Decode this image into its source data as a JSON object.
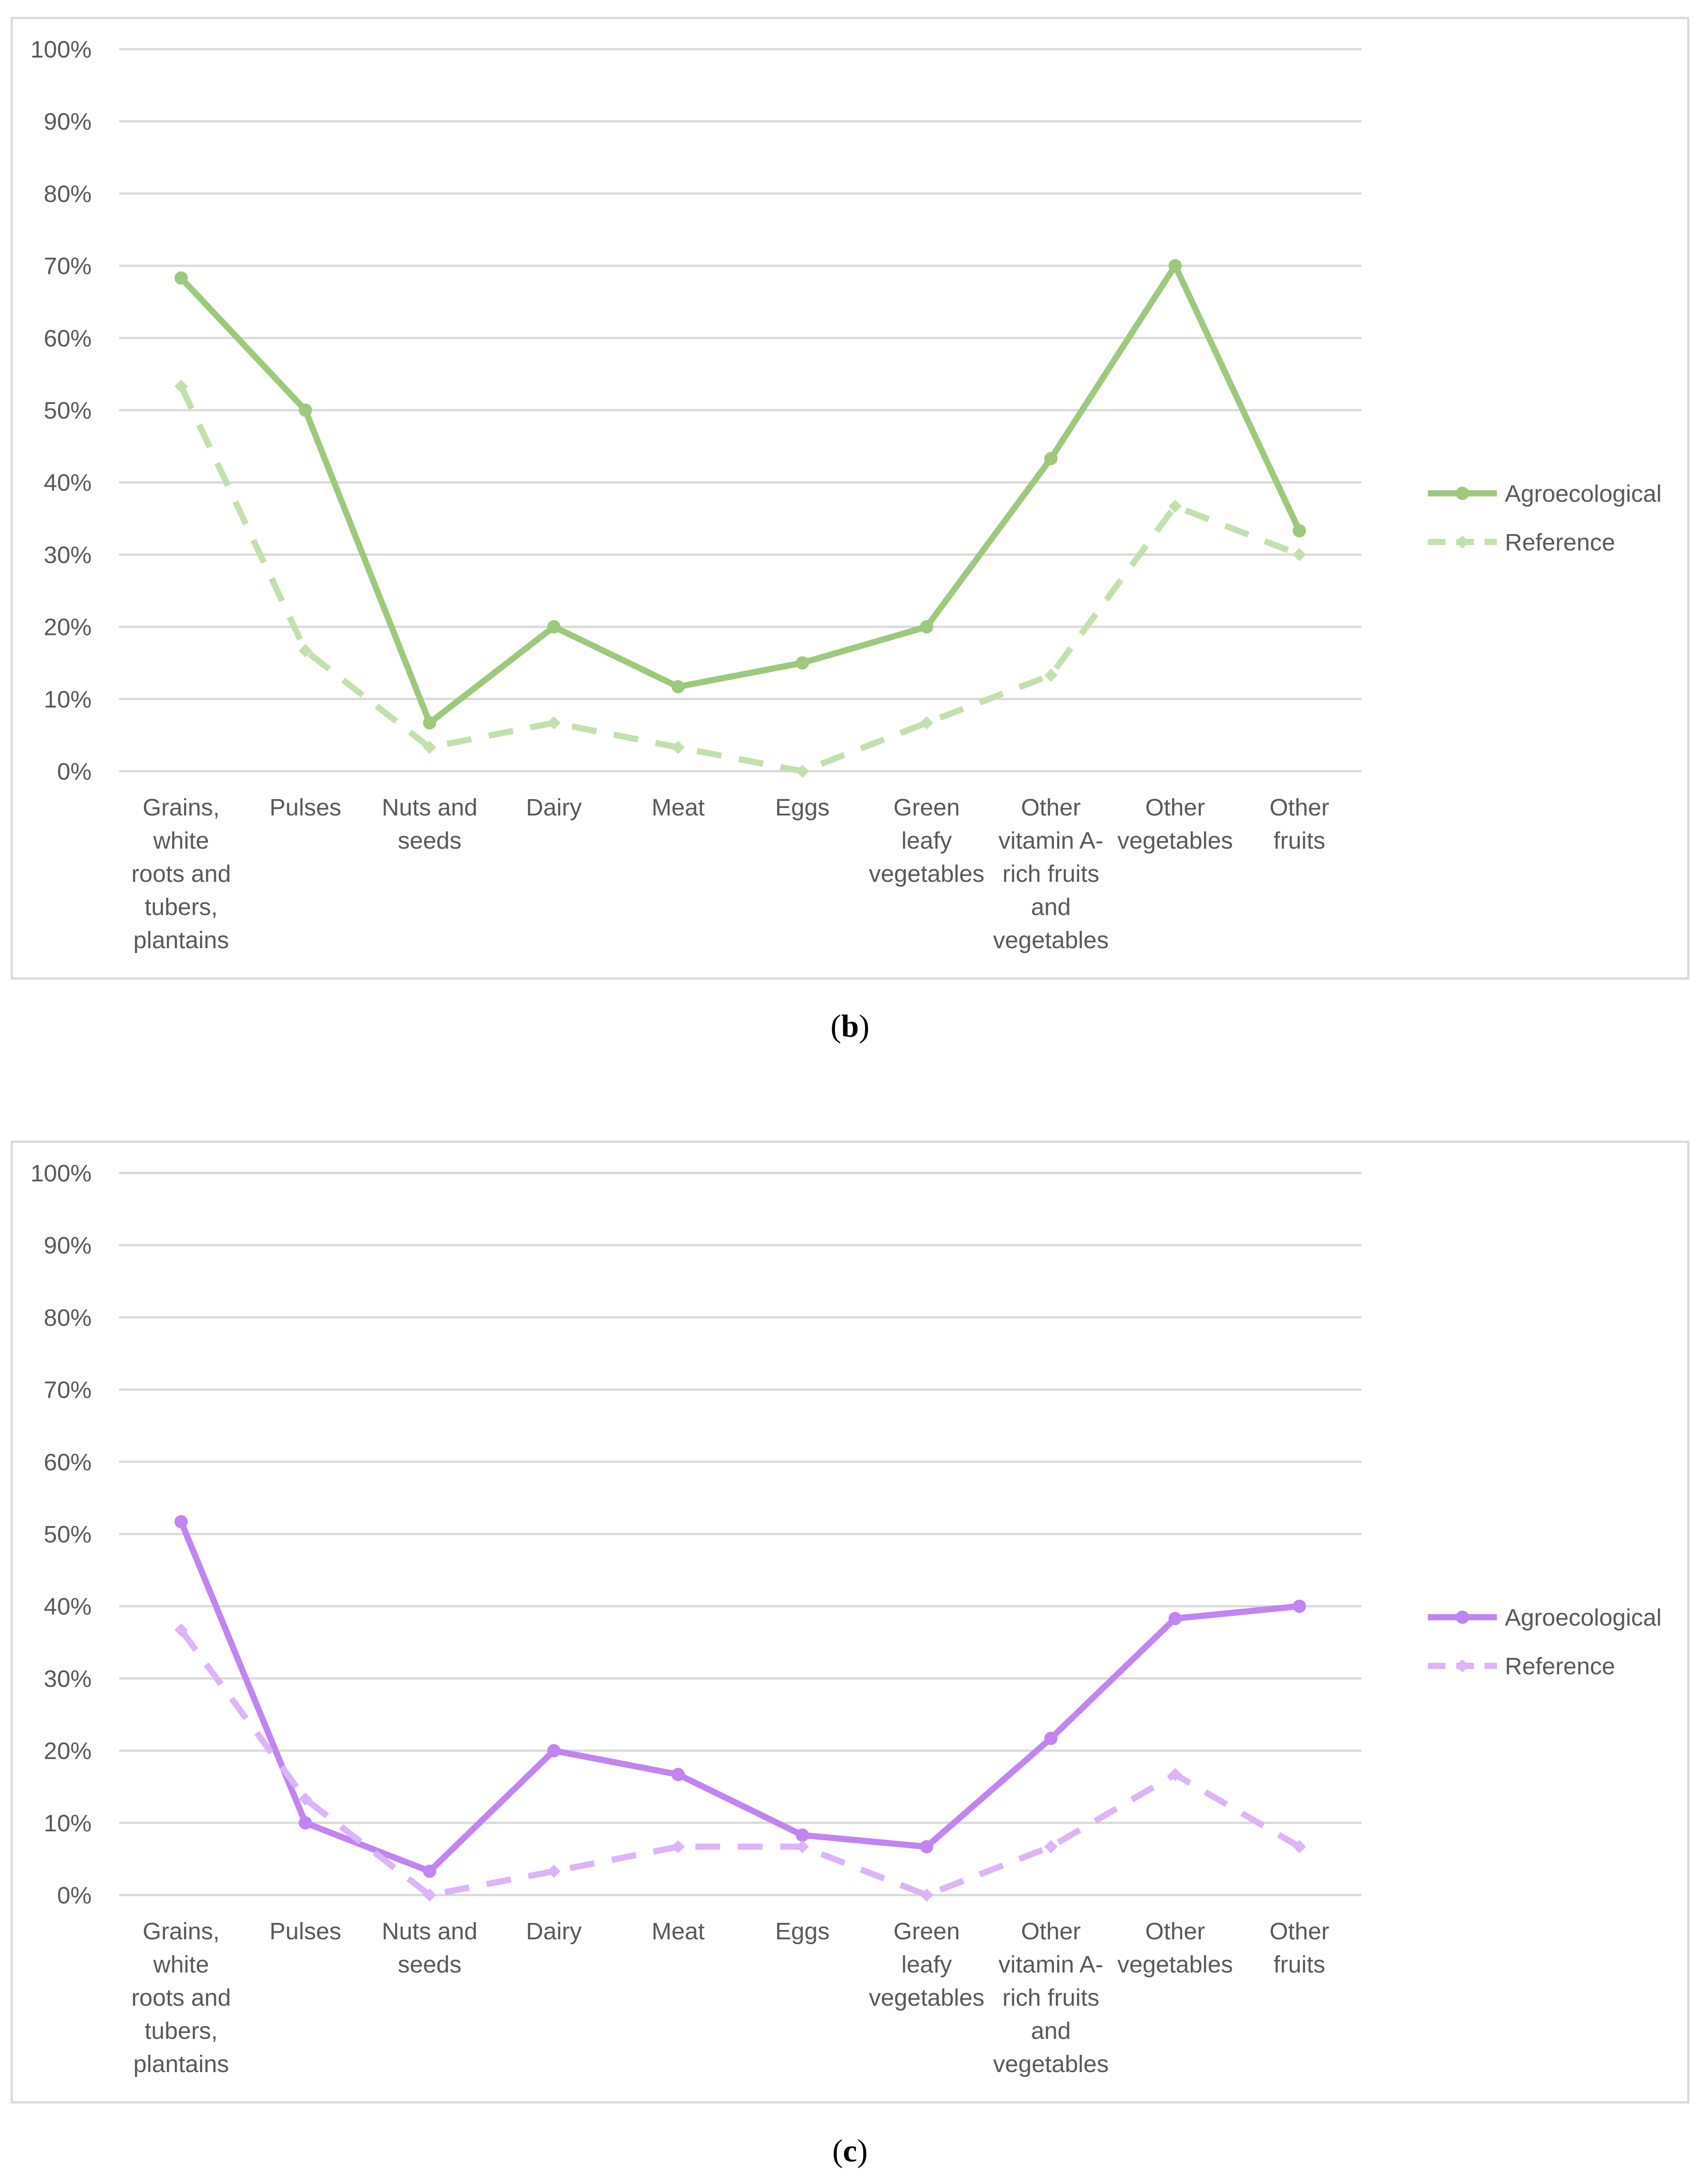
{
  "figure": {
    "panels": [
      {
        "caption": "b",
        "accent": "#9dc97c",
        "reference_color": "#c2e0ad"
      },
      {
        "caption": "c",
        "accent": "#c184f2",
        "reference_color": "#dcb4f7"
      }
    ]
  },
  "chart_data": [
    {
      "type": "line",
      "panel": "b",
      "categories": [
        [
          "Grains,",
          "white",
          "roots and",
          "tubers,",
          "plantains"
        ],
        [
          "Pulses"
        ],
        [
          "Nuts and",
          "seeds"
        ],
        [
          "Dairy"
        ],
        [
          "Meat"
        ],
        [
          "Eggs"
        ],
        [
          "Green",
          "leafy",
          "vegetables"
        ],
        [
          "Other",
          "vitamin A-",
          "rich fruits",
          "and",
          "vegetables"
        ],
        [
          "Other",
          "vegetables"
        ],
        [
          "Other",
          "fruits"
        ]
      ],
      "series": [
        {
          "name": "Agroecological",
          "style": "solid",
          "marker": "circle",
          "color": "#9dc97c",
          "values": [
            68.3,
            50.0,
            6.7,
            20.0,
            11.7,
            15.0,
            20.0,
            43.3,
            70.0,
            33.3
          ]
        },
        {
          "name": "Reference",
          "style": "dashed",
          "marker": "diamond",
          "color": "#c2e0ad",
          "values": [
            53.3,
            16.7,
            3.3,
            6.7,
            3.3,
            0.0,
            6.7,
            13.3,
            36.7,
            30.0
          ]
        }
      ],
      "yticks": [
        "0%",
        "10%",
        "20%",
        "30%",
        "40%",
        "50%",
        "60%",
        "70%",
        "80%",
        "90%",
        "100%"
      ],
      "ylim": [
        0,
        100
      ],
      "grid": true,
      "legend": "right",
      "title": "",
      "xlabel": "",
      "ylabel": ""
    },
    {
      "type": "line",
      "panel": "c",
      "categories": [
        [
          "Grains,",
          "white",
          "roots and",
          "tubers,",
          "plantains"
        ],
        [
          "Pulses"
        ],
        [
          "Nuts and",
          "seeds"
        ],
        [
          "Dairy"
        ],
        [
          "Meat"
        ],
        [
          "Eggs"
        ],
        [
          "Green",
          "leafy",
          "vegetables"
        ],
        [
          "Other",
          "vitamin A-",
          "rich fruits",
          "and",
          "vegetables"
        ],
        [
          "Other",
          "vegetables"
        ],
        [
          "Other",
          "fruits"
        ]
      ],
      "series": [
        {
          "name": "Agroecological",
          "style": "solid",
          "marker": "circle",
          "color": "#c184f2",
          "values": [
            51.7,
            10.0,
            3.3,
            20.0,
            16.7,
            8.3,
            6.7,
            21.7,
            38.3,
            40.0
          ]
        },
        {
          "name": "Reference",
          "style": "dashed",
          "marker": "diamond",
          "color": "#dcb4f7",
          "values": [
            36.7,
            13.3,
            0.0,
            3.3,
            6.7,
            6.7,
            0.0,
            6.7,
            16.7,
            6.7
          ]
        }
      ],
      "yticks": [
        "0%",
        "10%",
        "20%",
        "30%",
        "40%",
        "50%",
        "60%",
        "70%",
        "80%",
        "90%",
        "100%"
      ],
      "ylim": [
        0,
        100
      ],
      "grid": true,
      "legend": "right",
      "title": "",
      "xlabel": "",
      "ylabel": ""
    }
  ]
}
